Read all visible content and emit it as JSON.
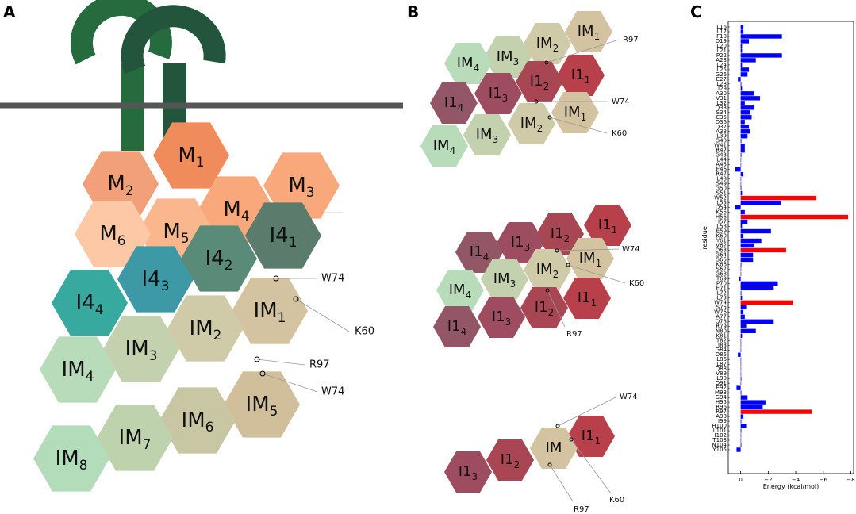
{
  "panel_a": {
    "label": "A",
    "nodes": [
      {
        "base": "M",
        "sub": "2",
        "color": "#f1a07a"
      },
      {
        "base": "M",
        "sub": "1",
        "color": "#f08c5c"
      },
      {
        "base": "M",
        "sub": "3",
        "color": "#f9a87c"
      },
      {
        "base": "M",
        "sub": "4",
        "color": "#f9a87c"
      },
      {
        "base": "M",
        "sub": "5",
        "color": "#fab68c"
      },
      {
        "base": "M",
        "sub": "6",
        "color": "#fcc8a5"
      },
      {
        "base": "I4",
        "sub": "4",
        "color": "#38a99f"
      },
      {
        "base": "I4",
        "sub": "3",
        "color": "#3e99a7"
      },
      {
        "base": "I4",
        "sub": "2",
        "color": "#5a8a78"
      },
      {
        "base": "I4",
        "sub": "1",
        "color": "#5b7b6c"
      },
      {
        "base": "IM",
        "sub": "1",
        "color": "#d3c3a0"
      },
      {
        "base": "IM",
        "sub": "2",
        "color": "#cfcaa7"
      },
      {
        "base": "IM",
        "sub": "3",
        "color": "#c4d1ae"
      },
      {
        "base": "IM",
        "sub": "4",
        "color": "#b8dbb9"
      },
      {
        "base": "IM",
        "sub": "5",
        "color": "#d0bf9a"
      },
      {
        "base": "IM",
        "sub": "6",
        "color": "#c9c7a3"
      },
      {
        "base": "IM",
        "sub": "7",
        "color": "#bfd2ae"
      },
      {
        "base": "IM",
        "sub": "8",
        "color": "#b3dcbb"
      }
    ],
    "annotations": [
      "W74",
      "K60",
      "R97",
      "W74"
    ]
  },
  "panel_b": {
    "label": "B",
    "groups": [
      {
        "nodes": [
          {
            "base": "IM",
            "sub": "1",
            "color": "#d3c3a0"
          },
          {
            "base": "IM",
            "sub": "2",
            "color": "#cfcaa7"
          },
          {
            "base": "IM",
            "sub": "3",
            "color": "#c4d1ae"
          },
          {
            "base": "IM",
            "sub": "4",
            "color": "#b8dbb9"
          },
          {
            "base": "I1",
            "sub": "1",
            "color": "#b8404b"
          },
          {
            "base": "I1",
            "sub": "2",
            "color": "#a84654"
          },
          {
            "base": "I1",
            "sub": "3",
            "color": "#9e4c60"
          },
          {
            "base": "I1",
            "sub": "4",
            "color": "#935667"
          },
          {
            "base": "IM",
            "sub": "1",
            "color": "#d3c3a0"
          },
          {
            "base": "IM",
            "sub": "2",
            "color": "#cfcaa7"
          },
          {
            "base": "IM",
            "sub": "3",
            "color": "#c4d1ae"
          },
          {
            "base": "IM",
            "sub": "4",
            "color": "#b8dbb9"
          }
        ],
        "annotations": [
          "R97",
          "W74",
          "K60"
        ]
      },
      {
        "nodes": [
          {
            "base": "I1",
            "sub": "1",
            "color": "#b8404b"
          },
          {
            "base": "I1",
            "sub": "2",
            "color": "#a84654"
          },
          {
            "base": "I1",
            "sub": "3",
            "color": "#9e4c60"
          },
          {
            "base": "I1",
            "sub": "4",
            "color": "#935667"
          },
          {
            "base": "IM",
            "sub": "1",
            "color": "#d3c3a0"
          },
          {
            "base": "IM",
            "sub": "2",
            "color": "#cfcaa7"
          },
          {
            "base": "IM",
            "sub": "3",
            "color": "#c4d1ae"
          },
          {
            "base": "IM",
            "sub": "4",
            "color": "#b8dbb9"
          },
          {
            "base": "I1",
            "sub": "1",
            "color": "#b8404b"
          },
          {
            "base": "I1",
            "sub": "2",
            "color": "#a84654"
          },
          {
            "base": "I1",
            "sub": "3",
            "color": "#9e4c60"
          },
          {
            "base": "I1",
            "sub": "4",
            "color": "#935667"
          }
        ],
        "annotations": [
          "W74",
          "K60",
          "R97"
        ]
      },
      {
        "nodes": [
          {
            "base": "I1",
            "sub": "1",
            "color": "#b8404b"
          },
          {
            "base": "IM",
            "color": "#d3c3a0"
          },
          {
            "base": "I1",
            "sub": "2",
            "color": "#a84654"
          },
          {
            "base": "I1",
            "sub": "3",
            "color": "#9e4c60"
          }
        ],
        "annotations": [
          "W74",
          "K60",
          "R97"
        ]
      }
    ]
  },
  "chart_data": {
    "type": "barh",
    "panel_label": "C",
    "xlabel": "Energy (kcal/mol)",
    "ylabel": "residue",
    "categories": [
      "L16",
      "L17",
      "F18",
      "D19",
      "L20",
      "L21",
      "P22",
      "A23",
      "L24",
      "L25",
      "G26",
      "E27",
      "L28",
      "I29",
      "A30",
      "V31",
      "L32",
      "Q33",
      "S34",
      "C35",
      "D36",
      "Q37",
      "A38",
      "L39",
      "G40",
      "W41",
      "R42",
      "G43",
      "L44",
      "A45",
      "E46",
      "R47",
      "L48",
      "S49",
      "G50",
      "S51",
      "W52",
      "L53",
      "D54",
      "K55",
      "H56",
      "I57",
      "L58",
      "E59",
      "K60",
      "Y61",
      "V62",
      "D63",
      "G64",
      "G65",
      "K66",
      "S67",
      "G68",
      "T69",
      "P70",
      "E71",
      "L72",
      "L73",
      "W74",
      "S75",
      "W76",
      "A77",
      "Q78",
      "R79",
      "N80",
      "K81",
      "T82",
      "I83",
      "G84",
      "D85",
      "L86",
      "L87",
      "Q88",
      "V89",
      "L90",
      "Q91",
      "E92",
      "M93",
      "G94",
      "H95",
      "R96",
      "R97",
      "A98",
      "I99",
      "H100",
      "L101",
      "I102",
      "T103",
      "N104",
      "Y105"
    ],
    "values": [
      -0.2,
      -0.2,
      -3.0,
      -0.6,
      -0.1,
      -0.1,
      -3.0,
      -1.1,
      -0.1,
      -0.6,
      -0.5,
      0.2,
      -0.05,
      -0.1,
      -1.0,
      -1.4,
      -0.3,
      -1.0,
      -0.7,
      -0.8,
      -0.3,
      -0.6,
      -0.7,
      -0.5,
      -0.05,
      -0.3,
      -0.3,
      -0.05,
      0,
      0,
      0.4,
      -0.2,
      0,
      0,
      -0.05,
      -0.1,
      -5.5,
      -2.9,
      0.4,
      -0.3,
      -7.8,
      -0.5,
      -0.1,
      -2.2,
      -0.2,
      -1.5,
      -1.0,
      -3.3,
      -0.9,
      -0.9,
      -0.05,
      0,
      0,
      0.1,
      -2.7,
      -2.4,
      -0.05,
      -0.1,
      -3.8,
      -0.4,
      -0.2,
      -0.3,
      -2.4,
      -0.4,
      -1.1,
      -0.1,
      0,
      0,
      0,
      0.2,
      0,
      0,
      0,
      0,
      -0.05,
      0,
      0.3,
      -0.05,
      -0.5,
      -1.8,
      -1.6,
      -5.2,
      -0.2,
      -0.05,
      -0.4,
      -0.05,
      0,
      0,
      -0.05,
      0.3
    ],
    "colors": [
      "#00f",
      "#00f",
      "#00f",
      "#00f",
      "#00f",
      "#00f",
      "#00f",
      "#00f",
      "#00f",
      "#00f",
      "#00f",
      "#00f",
      "#00f",
      "#00f",
      "#00f",
      "#00f",
      "#00f",
      "#00f",
      "#00f",
      "#00f",
      "#00f",
      "#00f",
      "#00f",
      "#00f",
      "#00f",
      "#00f",
      "#00f",
      "#00f",
      "#00f",
      "#00f",
      "#00f",
      "#00f",
      "#00f",
      "#00f",
      "#00f",
      "#00f",
      "#f00",
      "#00f",
      "#00f",
      "#00f",
      "#f00",
      "#00f",
      "#00f",
      "#00f",
      "#00f",
      "#00f",
      "#00f",
      "#f00",
      "#00f",
      "#00f",
      "#00f",
      "#00f",
      "#00f",
      "#00f",
      "#00f",
      "#00f",
      "#00f",
      "#00f",
      "#f00",
      "#00f",
      "#00f",
      "#00f",
      "#00f",
      "#00f",
      "#00f",
      "#00f",
      "#00f",
      "#00f",
      "#00f",
      "#00f",
      "#00f",
      "#00f",
      "#00f",
      "#00f",
      "#00f",
      "#00f",
      "#00f",
      "#00f",
      "#00f",
      "#00f",
      "#00f",
      "#f00",
      "#00f",
      "#00f",
      "#00f",
      "#00f",
      "#00f",
      "#00f",
      "#00f",
      "#00f"
    ],
    "xlim": [
      0.9,
      -8.2
    ],
    "xticks": [
      0,
      {
        "value": -2,
        "label": "−2"
      },
      {
        "value": -4,
        "label": "−4"
      },
      {
        "value": -6,
        "label": "−6"
      },
      {
        "value": -8,
        "label": "−8"
      }
    ]
  }
}
